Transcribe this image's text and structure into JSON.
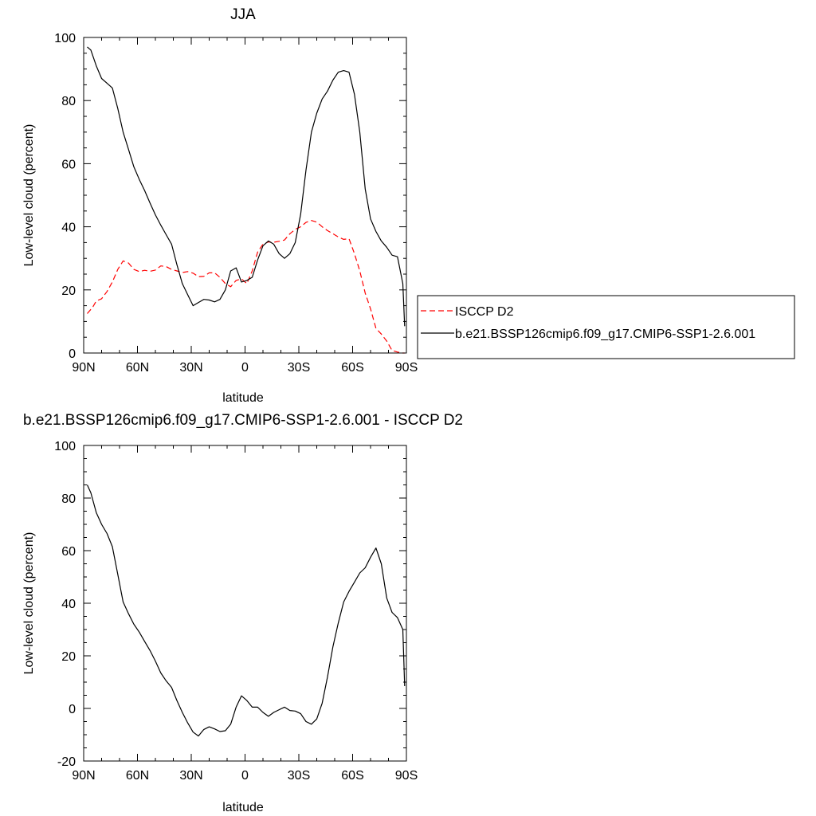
{
  "chart_data": [
    {
      "type": "line",
      "title": "JJA",
      "xlabel": "latitude",
      "ylabel": "Low-level cloud (percent)",
      "xlim": [
        -90,
        90
      ],
      "ylim": [
        0,
        100
      ],
      "xticks": [
        -90,
        -60,
        -30,
        0,
        30,
        60,
        90
      ],
      "xtick_labels": [
        "90N",
        "60N",
        "30N",
        "0",
        "30S",
        "60S",
        "90S"
      ],
      "yticks": [
        0,
        20,
        40,
        60,
        80,
        100
      ],
      "ytick_labels": [
        "0",
        "20",
        "40",
        "60",
        "80",
        "100"
      ],
      "grid": false,
      "legend": "right",
      "series": [
        {
          "name": "ISCCP D2",
          "color": "#ff0000",
          "dash": "dashed",
          "x": [
            -88,
            -85,
            -83,
            -80,
            -77,
            -74,
            -71,
            -68,
            -65,
            -62,
            -59,
            -56,
            -53,
            -50,
            -47,
            -44,
            -41,
            -38,
            -35,
            -32,
            -29,
            -26,
            -23,
            -20,
            -17,
            -14,
            -11,
            -8,
            -5,
            -2,
            1,
            4,
            7,
            10,
            13,
            16,
            19,
            22,
            25,
            28,
            31,
            34,
            37,
            40,
            43,
            46,
            49,
            52,
            55,
            58,
            61,
            64,
            67,
            70,
            73,
            76,
            79,
            82,
            85,
            88,
            89
          ],
          "values": [
            12.5,
            14.5,
            16.5,
            17.2,
            19.5,
            22.5,
            26.5,
            29.2,
            28.5,
            26.5,
            25.8,
            26.2,
            25.9,
            26.3,
            27.6,
            27.4,
            26.5,
            26.0,
            25.5,
            25.8,
            25.3,
            24.2,
            24.3,
            25.4,
            25.4,
            24.0,
            22.0,
            21.0,
            23.0,
            23.5,
            22.0,
            26.0,
            32.0,
            34.5,
            35.2,
            35.1,
            35.4,
            35.8,
            37.8,
            39.2,
            40.0,
            41.4,
            42.0,
            41.5,
            40.0,
            38.8,
            37.8,
            36.8,
            36.0,
            36.2,
            31.5,
            26.0,
            19.0,
            14.0,
            7.8,
            6.0,
            3.8,
            0.8,
            0.3,
            0.0,
            0.0
          ]
        },
        {
          "name": "b.e21.BSSP126cmip6.f09_g17.CMIP6-SSP1-2.6.001",
          "color": "#000000",
          "dash": "solid",
          "x": [
            -88,
            -86,
            -83,
            -80,
            -77,
            -74,
            -71,
            -68,
            -65,
            -62,
            -59,
            -56,
            -53,
            -50,
            -47,
            -44,
            -41,
            -38,
            -35,
            -32,
            -29,
            -26,
            -23,
            -20,
            -17,
            -14,
            -11,
            -8,
            -5,
            -2,
            1,
            4,
            7,
            10,
            13,
            16,
            19,
            22,
            25,
            28,
            31,
            34,
            37,
            40,
            43,
            46,
            49,
            52,
            55,
            58,
            61,
            64,
            67,
            70,
            73,
            76,
            79,
            82,
            85,
            88,
            89
          ],
          "values": [
            97.0,
            96.0,
            91.0,
            87.0,
            85.5,
            84.0,
            77.5,
            70.0,
            64.5,
            59.0,
            55.0,
            51.5,
            47.5,
            43.8,
            40.5,
            37.5,
            34.5,
            28.0,
            22.0,
            18.5,
            15.0,
            16.0,
            17.0,
            16.8,
            16.2,
            17.0,
            20.0,
            26.0,
            27.0,
            22.5,
            23.0,
            24.0,
            29.5,
            34.0,
            35.5,
            34.5,
            31.5,
            30.0,
            31.5,
            35.0,
            44.0,
            58.0,
            70.0,
            76.0,
            80.5,
            83.0,
            86.5,
            89.0,
            89.5,
            89.0,
            82.0,
            70.0,
            52.0,
            42.5,
            38.5,
            35.5,
            33.5,
            31.0,
            30.5,
            22.0,
            8.5
          ]
        }
      ]
    },
    {
      "type": "line",
      "title": "b.e21.BSSP126cmip6.f09_g17.CMIP6-SSP1-2.6.001 - ISCCP D2",
      "xlabel": "latitude",
      "ylabel": "Low-level cloud (percent)",
      "xlim": [
        -90,
        90
      ],
      "ylim": [
        -20,
        100
      ],
      "xticks": [
        -90,
        -60,
        -30,
        0,
        30,
        60,
        90
      ],
      "xtick_labels": [
        "90N",
        "60N",
        "30N",
        "0",
        "30S",
        "60S",
        "90S"
      ],
      "yticks": [
        -20,
        0,
        20,
        40,
        60,
        80,
        100
      ],
      "ytick_labels": [
        "-20",
        "0",
        "20",
        "40",
        "60",
        "80",
        "100"
      ],
      "grid": false,
      "series": [
        {
          "color": "#000000",
          "dash": "solid",
          "x": [
            -88,
            -86,
            -83,
            -80,
            -77,
            -74,
            -71,
            -68,
            -65,
            -62,
            -59,
            -56,
            -53,
            -50,
            -47,
            -44,
            -41,
            -38,
            -35,
            -32,
            -29,
            -26,
            -23,
            -20,
            -17,
            -14,
            -11,
            -8,
            -5,
            -2,
            1,
            4,
            7,
            10,
            13,
            16,
            19,
            22,
            25,
            28,
            31,
            34,
            37,
            40,
            43,
            46,
            49,
            52,
            55,
            58,
            61,
            64,
            67,
            70,
            73,
            76,
            79,
            82,
            85,
            88,
            89
          ],
          "values": [
            85.0,
            82.0,
            74.5,
            70.0,
            66.5,
            61.5,
            51.0,
            40.5,
            36.0,
            32.0,
            29.0,
            25.5,
            22.0,
            18.0,
            13.5,
            10.5,
            8.0,
            3.0,
            -1.5,
            -5.5,
            -9.0,
            -10.5,
            -8.0,
            -7.0,
            -7.8,
            -8.8,
            -8.5,
            -6.0,
            0.5,
            4.8,
            3.0,
            0.5,
            0.5,
            -1.5,
            -3.0,
            -1.5,
            -0.5,
            0.5,
            -0.8,
            -1.0,
            -2.0,
            -5.0,
            -6.0,
            -4.0,
            2.0,
            12.0,
            23.5,
            32.5,
            40.5,
            44.5,
            48.0,
            51.5,
            53.5,
            57.5,
            61.0,
            55.0,
            42.0,
            36.5,
            34.5,
            30.0,
            8.5
          ]
        }
      ]
    }
  ]
}
